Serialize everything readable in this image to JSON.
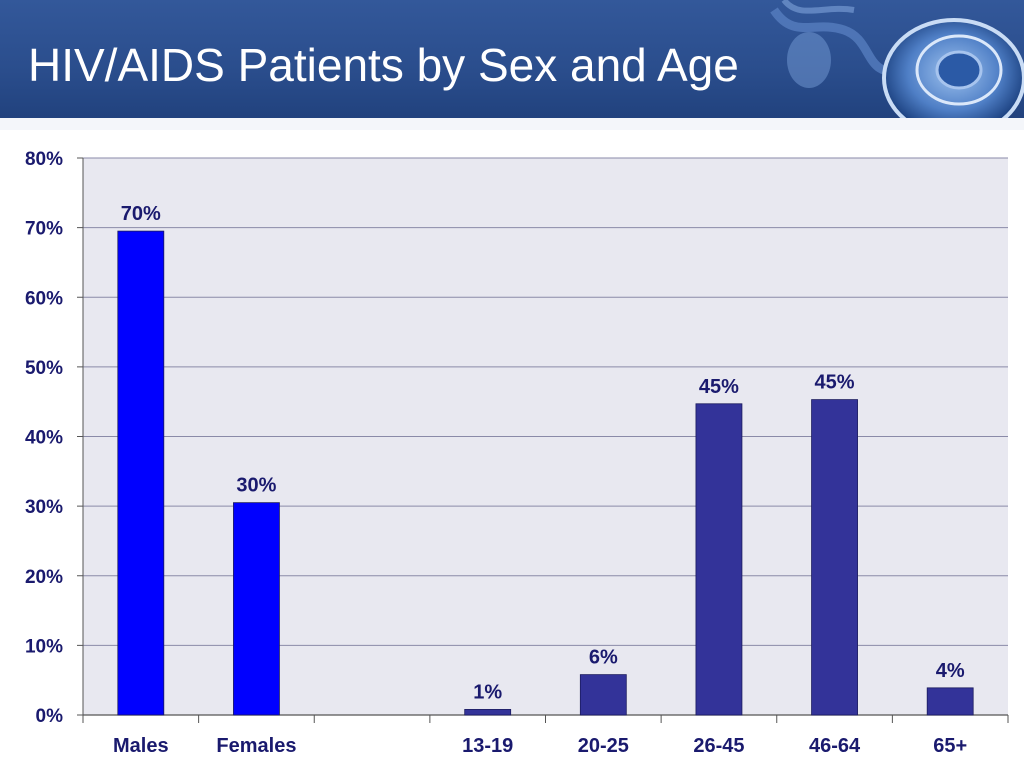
{
  "slide": {
    "title": "HIV/AIDS Patients by Sex and Age"
  },
  "decoration": {
    "icon": "stethoscope-icon"
  },
  "colors": {
    "banner": "#2a4d8c",
    "sex_bars": "#0000ff",
    "age_bars": "#333399",
    "plot_bg": "#e8e8f0",
    "label_text": "#1a1a6e"
  },
  "chart_data": {
    "type": "bar",
    "categories": [
      "Males",
      "Females",
      "",
      "13-19",
      "20-25",
      "26-45",
      "46-64",
      "65+"
    ],
    "values": [
      70,
      30,
      null,
      1,
      6,
      45,
      45,
      4
    ],
    "plotted_values": [
      69.5,
      30.5,
      null,
      0.8,
      5.8,
      44.7,
      45.3,
      3.9
    ],
    "data_labels": [
      "70%",
      "30%",
      "",
      "1%",
      "6%",
      "45%",
      "45%",
      "4%"
    ],
    "bar_groups": [
      "sex",
      "sex",
      "",
      "age",
      "age",
      "age",
      "age",
      "age"
    ],
    "yticks": [
      "0%",
      "10%",
      "20%",
      "30%",
      "40%",
      "50%",
      "60%",
      "70%",
      "80%"
    ],
    "ylim": [
      0,
      80
    ],
    "unit": "%",
    "grid": true,
    "legend": "none",
    "title": "",
    "xlabel": "",
    "ylabel": ""
  }
}
